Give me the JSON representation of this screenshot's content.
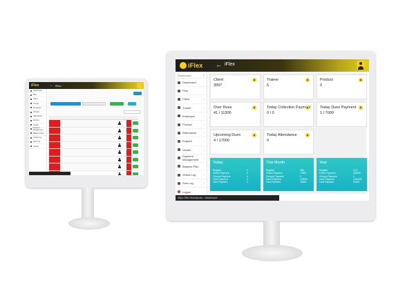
{
  "app": {
    "brand": "iFlex",
    "title": "iFlex",
    "back_glyph": "←",
    "status_text": "https://iflex.fitnesstudio.../dashboard"
  },
  "sidebar": {
    "header": "Dashboard",
    "items": [
      {
        "label": "Dashboard",
        "icon": "home-icon"
      },
      {
        "label": "Plan",
        "icon": "plan-icon"
      },
      {
        "label": "Client",
        "icon": "client-icon",
        "has_children": true
      },
      {
        "label": "Trainer",
        "icon": "trainer-icon",
        "has_children": true
      },
      {
        "label": "Employee",
        "icon": "employee-icon",
        "has_children": true
      },
      {
        "label": "Product",
        "icon": "product-icon",
        "has_children": true
      },
      {
        "label": "Attendance",
        "icon": "attendance-icon",
        "has_children": true
      },
      {
        "label": "Enquire",
        "icon": "enquire-icon",
        "has_children": true
      },
      {
        "label": "Vendor",
        "icon": "vendor-icon",
        "has_children": true
      },
      {
        "label": "Payment Management",
        "icon": "payment-icon",
        "has_children": true
      },
      {
        "label": "Balance Plan",
        "icon": "balance-icon"
      },
      {
        "label": "Verbal Log",
        "icon": "log-icon",
        "has_children": true
      },
      {
        "label": "Sms Log",
        "icon": "sms-icon",
        "has_children": true
      },
      {
        "label": "Logout",
        "icon": "logout-icon"
      }
    ]
  },
  "cards": [
    {
      "title": "Client",
      "value": "3997"
    },
    {
      "title": "Trainer",
      "value": "5"
    },
    {
      "title": "Product",
      "value": "0"
    },
    {
      "title": "Over Dues",
      "value": "41 / 11300"
    },
    {
      "title": "Today Collection Payment",
      "value": "0 / 0"
    },
    {
      "title": "Today Dues Payment",
      "value": "1 / 7000"
    },
    {
      "title": "Upcoming Dues",
      "value": "4 / 17000"
    },
    {
      "title": "Today Attendance",
      "value": "0"
    }
  ],
  "summaries": [
    {
      "title": "Today",
      "rows": [
        {
          "label": "Register",
          "value": "0"
        },
        {
          "label": "Online Payment",
          "value": "0"
        },
        {
          "label": "Cheque Payment",
          "value": "0"
        },
        {
          "label": "Cash Payment",
          "value": "0"
        },
        {
          "label": "Card Payment",
          "value": "0"
        }
      ]
    },
    {
      "title": "This Month",
      "rows": [
        {
          "label": "Register",
          "value": "186"
        },
        {
          "label": "Online Payment",
          "value": "72300"
        },
        {
          "label": "Cheque Payment",
          "value": "0"
        },
        {
          "label": "Cash Payment",
          "value": "126000"
        },
        {
          "label": "Card Payment",
          "value": "16500"
        }
      ]
    },
    {
      "title": "Year",
      "rows": [
        {
          "label": "Register",
          "value": "1117"
        },
        {
          "label": "Online Payment",
          "value": "162000"
        },
        {
          "label": "Cheque Payment",
          "value": "0"
        },
        {
          "label": "Cash Payment",
          "value": "1224000"
        },
        {
          "label": "Card Payment",
          "value": "32400"
        }
      ]
    }
  ],
  "colors": {
    "accent": "#f3d11a",
    "teal": "#1fbcc8",
    "danger": "#e21b1b",
    "success": "#2fb84a"
  }
}
